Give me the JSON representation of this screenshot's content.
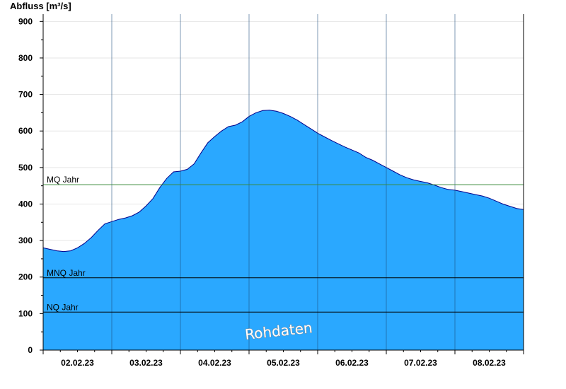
{
  "chart_data": {
    "type": "area",
    "ylabel": "Abfluss [m³/s]",
    "ylim": [
      0,
      920
    ],
    "yticks": [
      0,
      100,
      200,
      300,
      400,
      500,
      600,
      700,
      800,
      900
    ],
    "xlim": [
      0,
      7
    ],
    "xtick_labels": [
      "02.02.23",
      "03.02.23",
      "04.02.23",
      "05.02.23",
      "06.02.23",
      "07.02.23",
      "08.02.23"
    ],
    "grid": true,
    "area_color": "#2aa8ff",
    "line_color": "#00008b",
    "series": [
      {
        "x": [
          0.0,
          0.1,
          0.2,
          0.3,
          0.4,
          0.5,
          0.6,
          0.7,
          0.8,
          0.9,
          1.0,
          1.1,
          1.2,
          1.3,
          1.4,
          1.5,
          1.6,
          1.7,
          1.8,
          1.9,
          2.0,
          2.1,
          2.2,
          2.3,
          2.4,
          2.5,
          2.6,
          2.7,
          2.8,
          2.9,
          3.0,
          3.1,
          3.2,
          3.3,
          3.4,
          3.5,
          3.6,
          3.7,
          3.8,
          3.9,
          4.0,
          4.1,
          4.2,
          4.3,
          4.4,
          4.5,
          4.6,
          4.7,
          4.8,
          4.9,
          5.0,
          5.1,
          5.2,
          5.3,
          5.4,
          5.5,
          5.6,
          5.7,
          5.8,
          5.9,
          6.0,
          6.1,
          6.2,
          6.3,
          6.4,
          6.5,
          6.6,
          6.7,
          6.8,
          6.9,
          7.0
        ],
        "values": [
          280,
          276,
          272,
          270,
          272,
          280,
          292,
          308,
          328,
          346,
          352,
          358,
          362,
          368,
          378,
          395,
          415,
          445,
          470,
          488,
          490,
          495,
          510,
          540,
          568,
          585,
          600,
          612,
          616,
          625,
          640,
          650,
          656,
          657,
          654,
          648,
          640,
          630,
          618,
          606,
          594,
          584,
          574,
          565,
          556,
          548,
          540,
          528,
          520,
          510,
          500,
          490,
          480,
          472,
          466,
          462,
          458,
          452,
          445,
          440,
          438,
          434,
          430,
          426,
          422,
          416,
          408,
          400,
          394,
          388,
          385
        ]
      }
    ],
    "reference_lines": [
      {
        "label": "MQ Jahr",
        "value": 453,
        "color": "#3a8a3a"
      },
      {
        "label": "MNQ Jahr",
        "value": 198,
        "color": "#000000"
      },
      {
        "label": "NQ Jahr",
        "value": 104,
        "color": "#000000"
      }
    ],
    "watermark": "Rohdaten"
  }
}
